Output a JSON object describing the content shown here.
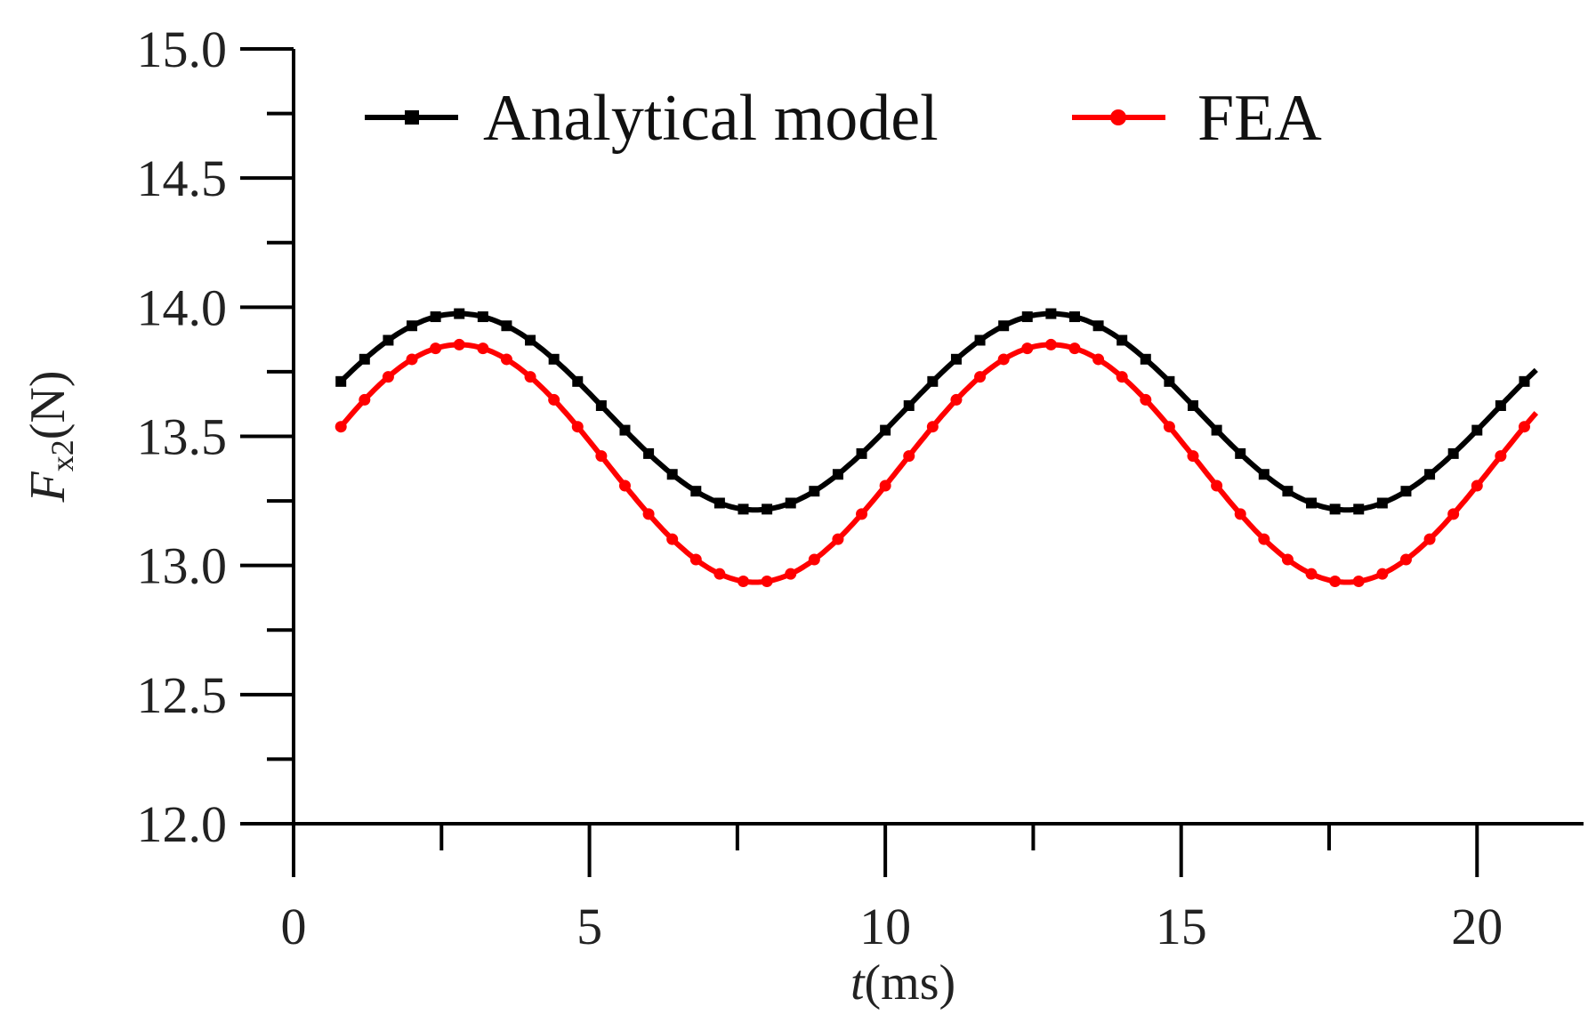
{
  "chart_data": {
    "type": "line",
    "title": "",
    "xlabel_var": "t",
    "xlabel_unit": "(ms)",
    "ylabel_var": "F",
    "ylabel_sub": "x2",
    "ylabel_unit": "(N)",
    "xlim": [
      0,
      21.8
    ],
    "ylim": [
      12.0,
      15.0
    ],
    "x_major_ticks": [
      0,
      5,
      10,
      15,
      20
    ],
    "x_tick_labels": [
      "0",
      "5",
      "10",
      "15",
      "20"
    ],
    "y_major_ticks": [
      12.0,
      12.5,
      13.0,
      13.5,
      14.0,
      14.5,
      15.0
    ],
    "y_tick_labels": [
      "12.0",
      "12.5",
      "13.0",
      "13.5",
      "14.0",
      "14.5",
      "15.0"
    ],
    "grid": false,
    "legend_position": "top",
    "series": [
      {
        "name": "Analytical model",
        "color": "#000000",
        "marker": "square",
        "mean": 13.595,
        "amplitude": 0.38,
        "period_ms": 10,
        "phase_ms": 0.3,
        "x_start": 0.8,
        "x_end": 21.0,
        "x_step": 0.4
      },
      {
        "name": "FEA",
        "color": "#ff0000",
        "marker": "circle",
        "mean": 13.395,
        "amplitude": 0.46,
        "period_ms": 10,
        "phase_ms": 0.3,
        "x_start": 0.8,
        "x_end": 21.0,
        "x_step": 0.4
      }
    ]
  }
}
